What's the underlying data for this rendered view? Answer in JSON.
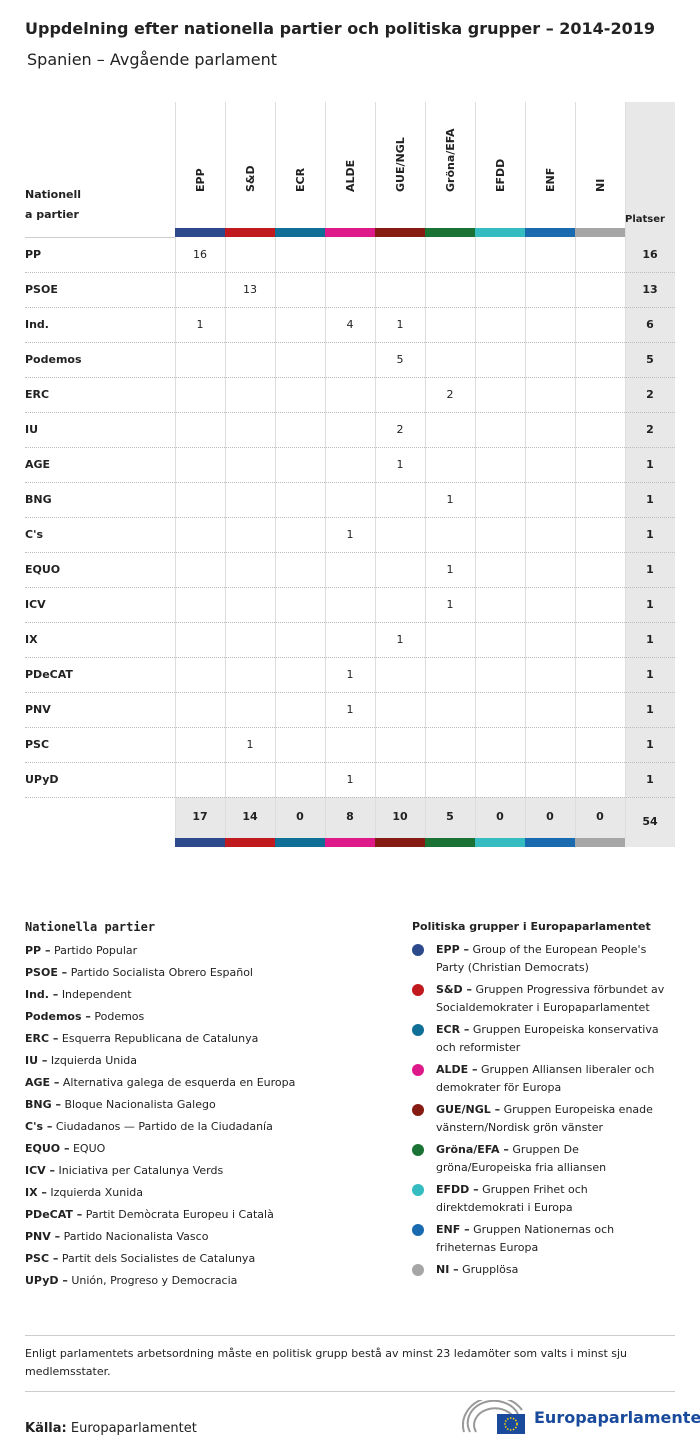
{
  "header": {
    "title": "Uppdelning efter nationella partier och politiska grupper – 2014-2019",
    "subtitle": "Spanien – Avgående parlament"
  },
  "table": {
    "corner": [
      "Nationell",
      "a partier"
    ],
    "total_header": "Platser",
    "groups": [
      {
        "name": "EPP",
        "color": "#2d4a8c"
      },
      {
        "name": "S&D",
        "color": "#c0191e"
      },
      {
        "name": "ECR",
        "color": "#0f6f96"
      },
      {
        "name": "ALDE",
        "color": "#de1a8a"
      },
      {
        "name": "GUE/NGL",
        "color": "#861b14"
      },
      {
        "name": "Gröna/EFA",
        "color": "#1a7335"
      },
      {
        "name": "EFDD",
        "color": "#34bcc0"
      },
      {
        "name": "ENF",
        "color": "#1a6ab0"
      },
      {
        "name": "NI",
        "color": "#a6a6a6"
      }
    ],
    "rows": [
      {
        "party": "PP",
        "cells": [
          16,
          null,
          null,
          null,
          null,
          null,
          null,
          null,
          null
        ],
        "total": 16
      },
      {
        "party": "PSOE",
        "cells": [
          null,
          13,
          null,
          null,
          null,
          null,
          null,
          null,
          null
        ],
        "total": 13
      },
      {
        "party": "Ind.",
        "cells": [
          1,
          null,
          null,
          4,
          1,
          null,
          null,
          null,
          null
        ],
        "total": 6
      },
      {
        "party": "Podemos",
        "cells": [
          null,
          null,
          null,
          null,
          5,
          null,
          null,
          null,
          null
        ],
        "total": 5
      },
      {
        "party": "ERC",
        "cells": [
          null,
          null,
          null,
          null,
          null,
          2,
          null,
          null,
          null
        ],
        "total": 2
      },
      {
        "party": "IU",
        "cells": [
          null,
          null,
          null,
          null,
          2,
          null,
          null,
          null,
          null
        ],
        "total": 2
      },
      {
        "party": "AGE",
        "cells": [
          null,
          null,
          null,
          null,
          1,
          null,
          null,
          null,
          null
        ],
        "total": 1
      },
      {
        "party": "BNG",
        "cells": [
          null,
          null,
          null,
          null,
          null,
          1,
          null,
          null,
          null
        ],
        "total": 1
      },
      {
        "party": "C's",
        "cells": [
          null,
          null,
          null,
          1,
          null,
          null,
          null,
          null,
          null
        ],
        "total": 1
      },
      {
        "party": "EQUO",
        "cells": [
          null,
          null,
          null,
          null,
          null,
          1,
          null,
          null,
          null
        ],
        "total": 1
      },
      {
        "party": "ICV",
        "cells": [
          null,
          null,
          null,
          null,
          null,
          1,
          null,
          null,
          null
        ],
        "total": 1
      },
      {
        "party": "IX",
        "cells": [
          null,
          null,
          null,
          null,
          1,
          null,
          null,
          null,
          null
        ],
        "total": 1
      },
      {
        "party": "PDeCAT",
        "cells": [
          null,
          null,
          null,
          1,
          null,
          null,
          null,
          null,
          null
        ],
        "total": 1
      },
      {
        "party": "PNV",
        "cells": [
          null,
          null,
          null,
          1,
          null,
          null,
          null,
          null,
          null
        ],
        "total": 1
      },
      {
        "party": "PSC",
        "cells": [
          null,
          1,
          null,
          null,
          null,
          null,
          null,
          null,
          null
        ],
        "total": 1
      },
      {
        "party": "UPyD",
        "cells": [
          null,
          null,
          null,
          1,
          null,
          null,
          null,
          null,
          null
        ],
        "total": 1
      }
    ],
    "totals": [
      17,
      14,
      0,
      8,
      10,
      5,
      0,
      0,
      0
    ],
    "grand_total": 54
  },
  "legend_parties": {
    "title": "Nationella partier",
    "items": [
      {
        "label": "PP –",
        "name": "Partido Popular"
      },
      {
        "label": "PSOE –",
        "name": "Partido Socialista Obrero Español"
      },
      {
        "label": "Ind. –",
        "name": "Independent"
      },
      {
        "label": "Podemos –",
        "name": "Podemos"
      },
      {
        "label": "ERC –",
        "name": "Esquerra Republicana de Catalunya"
      },
      {
        "label": "IU –",
        "name": "Izquierda Unida"
      },
      {
        "label": "AGE –",
        "name": "Alternativa galega de esquerda en Europa"
      },
      {
        "label": "BNG –",
        "name": "Bloque Nacionalista Galego"
      },
      {
        "label": "C's –",
        "name": "Ciudadanos — Partido de la Ciudadanía"
      },
      {
        "label": "EQUO –",
        "name": "EQUO"
      },
      {
        "label": "ICV –",
        "name": "Iniciativa per Catalunya Verds"
      },
      {
        "label": "IX –",
        "name": "Izquierda Xunida"
      },
      {
        "label": "PDeCAT –",
        "name": "Partit Demòcrata Europeu i Català"
      },
      {
        "label": "PNV –",
        "name": "Partido Nacionalista Vasco"
      },
      {
        "label": "PSC –",
        "name": "Partit dels Socialistes de Catalunya"
      },
      {
        "label": "UPyD –",
        "name": "Unión, Progreso y Democracia"
      }
    ]
  },
  "legend_groups": {
    "title": "Politiska grupper i Europaparlamentet",
    "items": [
      {
        "label": "EPP –",
        "name": "Group of the European People's Party (Christian Democrats)"
      },
      {
        "label": "S&D –",
        "name": "Gruppen Progressiva förbundet av Socialdemokrater i Europaparlamentet"
      },
      {
        "label": "ECR –",
        "name": "Gruppen Europeiska konservativa och reformister"
      },
      {
        "label": "ALDE –",
        "name": "Gruppen Alliansen liberaler och demokrater för Europa"
      },
      {
        "label": "GUE/NGL –",
        "name": "Gruppen Europeiska enade vänstern/Nordisk grön vänster"
      },
      {
        "label": "Gröna/EFA –",
        "name": "Gruppen De gröna/Europeiska fria alliansen"
      },
      {
        "label": "EFDD –",
        "name": "Gruppen Frihet och direktdemokrati i Europa"
      },
      {
        "label": "ENF –",
        "name": "Gruppen Nationernas och friheternas Europa"
      },
      {
        "label": "NI –",
        "name": "Grupplösa"
      }
    ]
  },
  "footnote": "Enligt parlamentets arbetsordning måste en politisk grupp bestå av minst 23 ledamöter som valts i minst sju medlemsstater.",
  "source": {
    "label": "Källa:",
    "text": "Europaparlamentet"
  },
  "logo": "Europaparlamentet"
}
